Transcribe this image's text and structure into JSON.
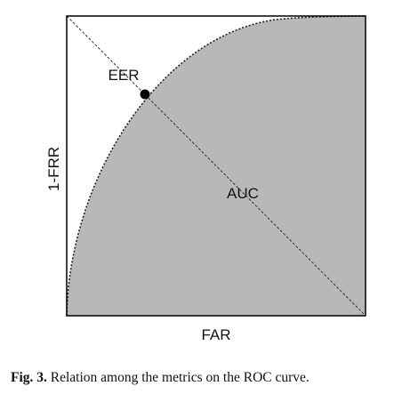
{
  "diagram": {
    "labels": {
      "eer": "EER",
      "auc": "AUC",
      "x_axis": "FAR",
      "y_axis": "1-FRR"
    },
    "colors": {
      "auc_fill": "#b8b8b8",
      "frame": "#000000",
      "curve": "#222222"
    }
  },
  "caption": {
    "number": "Fig. 3.",
    "text": "Relation among the metrics on the ROC curve."
  }
}
